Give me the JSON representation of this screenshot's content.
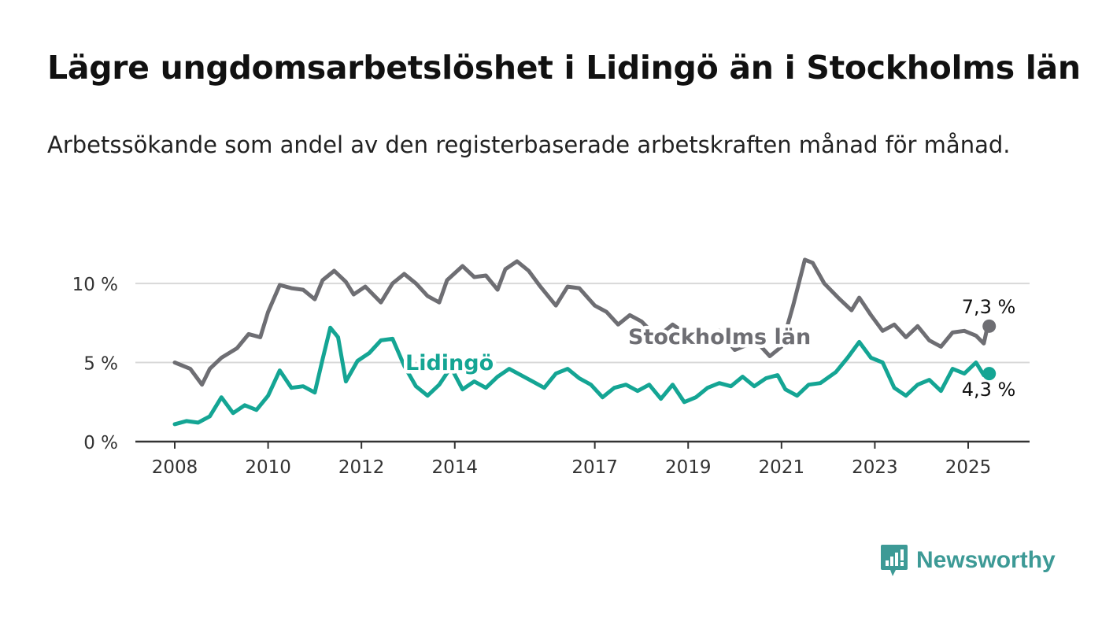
{
  "header": {
    "title": "Lägre ungdomsarbetslöshet i Lidingö än i Stockholms län",
    "subtitle": "Arbetssökande som andel av den registerbaserade arbetskraften månad för månad."
  },
  "brand": {
    "name": "Newsworthy",
    "icon": "newsworthy-bar-chart-logo-icon"
  },
  "colors": {
    "stockholm": "#6e6e73",
    "lidingo": "#14a594",
    "grid": "#d8d8d8",
    "axis": "#333333",
    "brand": "#3d9a96"
  },
  "chart_data": {
    "type": "line",
    "x_start": "2008-01",
    "x_end": "2025-06",
    "x_ticks": [
      "2008",
      "2010",
      "2012",
      "2014",
      "2017",
      "2019",
      "2021",
      "2023",
      "2025"
    ],
    "y_ticks": [
      0,
      5,
      10
    ],
    "y_tick_labels": [
      "0 %",
      "5 %",
      "10 %"
    ],
    "ylim": [
      0,
      12
    ],
    "grid": true,
    "series": [
      {
        "name": "Stockholms län",
        "key": "stockholm",
        "end_label": "7,3 %",
        "points": [
          [
            "2008-01",
            5.0
          ],
          [
            "2008-05",
            4.6
          ],
          [
            "2008-08",
            3.6
          ],
          [
            "2008-10",
            4.6
          ],
          [
            "2009-01",
            5.3
          ],
          [
            "2009-05",
            5.9
          ],
          [
            "2009-08",
            6.8
          ],
          [
            "2009-11",
            6.6
          ],
          [
            "2010-01",
            8.2
          ],
          [
            "2010-04",
            9.9
          ],
          [
            "2010-07",
            9.7
          ],
          [
            "2010-10",
            9.6
          ],
          [
            "2011-01",
            9.0
          ],
          [
            "2011-03",
            10.2
          ],
          [
            "2011-06",
            10.8
          ],
          [
            "2011-09",
            10.1
          ],
          [
            "2011-11",
            9.3
          ],
          [
            "2012-02",
            9.8
          ],
          [
            "2012-06",
            8.8
          ],
          [
            "2012-09",
            10.0
          ],
          [
            "2012-12",
            10.6
          ],
          [
            "2013-03",
            10.0
          ],
          [
            "2013-06",
            9.2
          ],
          [
            "2013-09",
            8.8
          ],
          [
            "2013-11",
            10.2
          ],
          [
            "2014-03",
            11.1
          ],
          [
            "2014-06",
            10.4
          ],
          [
            "2014-09",
            10.5
          ],
          [
            "2014-12",
            9.6
          ],
          [
            "2015-02",
            10.9
          ],
          [
            "2015-05",
            11.4
          ],
          [
            "2015-08",
            10.8
          ],
          [
            "2015-11",
            9.8
          ],
          [
            "2016-03",
            8.6
          ],
          [
            "2016-06",
            9.8
          ],
          [
            "2016-09",
            9.7
          ],
          [
            "2017-01",
            8.6
          ],
          [
            "2017-04",
            8.2
          ],
          [
            "2017-07",
            7.4
          ],
          [
            "2017-10",
            8.0
          ],
          [
            "2018-01",
            7.6
          ],
          [
            "2018-05",
            6.6
          ],
          [
            "2018-09",
            7.4
          ],
          [
            "2018-12",
            6.9
          ],
          [
            "2019-03",
            6.4
          ],
          [
            "2019-06",
            6.1
          ],
          [
            "2019-09",
            7.0
          ],
          [
            "2019-11",
            6.4
          ],
          [
            "2020-01",
            5.8
          ],
          [
            "2020-04",
            6.1
          ],
          [
            "2020-07",
            6.2
          ],
          [
            "2020-10",
            5.4
          ],
          [
            "2021-01",
            6.0
          ],
          [
            "2021-04",
            8.6
          ],
          [
            "2021-07",
            11.5
          ],
          [
            "2021-09",
            11.3
          ],
          [
            "2021-12",
            10.0
          ],
          [
            "2022-04",
            9.0
          ],
          [
            "2022-07",
            8.3
          ],
          [
            "2022-09",
            9.1
          ],
          [
            "2022-12",
            8.0
          ],
          [
            "2023-03",
            7.0
          ],
          [
            "2023-06",
            7.4
          ],
          [
            "2023-09",
            6.6
          ],
          [
            "2023-12",
            7.3
          ],
          [
            "2024-03",
            6.4
          ],
          [
            "2024-06",
            6.0
          ],
          [
            "2024-09",
            6.9
          ],
          [
            "2024-12",
            7.0
          ],
          [
            "2025-03",
            6.7
          ],
          [
            "2025-05",
            6.2
          ],
          [
            "2025-06",
            7.3
          ]
        ]
      },
      {
        "name": "Lidingö",
        "key": "lidingo",
        "end_label": "4,3 %",
        "points": [
          [
            "2008-01",
            1.1
          ],
          [
            "2008-04",
            1.3
          ],
          [
            "2008-07",
            1.2
          ],
          [
            "2008-10",
            1.6
          ],
          [
            "2009-01",
            2.8
          ],
          [
            "2009-04",
            1.8
          ],
          [
            "2009-07",
            2.3
          ],
          [
            "2009-10",
            2.0
          ],
          [
            "2010-01",
            2.9
          ],
          [
            "2010-04",
            4.5
          ],
          [
            "2010-07",
            3.4
          ],
          [
            "2010-10",
            3.5
          ],
          [
            "2011-01",
            3.1
          ],
          [
            "2011-03",
            5.2
          ],
          [
            "2011-05",
            7.2
          ],
          [
            "2011-07",
            6.6
          ],
          [
            "2011-09",
            3.8
          ],
          [
            "2011-12",
            5.1
          ],
          [
            "2012-03",
            5.6
          ],
          [
            "2012-06",
            6.4
          ],
          [
            "2012-09",
            6.5
          ],
          [
            "2012-12",
            4.8
          ],
          [
            "2013-03",
            3.5
          ],
          [
            "2013-06",
            2.9
          ],
          [
            "2013-09",
            3.6
          ],
          [
            "2013-12",
            4.7
          ],
          [
            "2014-03",
            3.3
          ],
          [
            "2014-06",
            3.8
          ],
          [
            "2014-09",
            3.4
          ],
          [
            "2014-12",
            4.1
          ],
          [
            "2015-03",
            4.6
          ],
          [
            "2015-06",
            4.2
          ],
          [
            "2015-09",
            3.8
          ],
          [
            "2015-12",
            3.4
          ],
          [
            "2016-03",
            4.3
          ],
          [
            "2016-06",
            4.6
          ],
          [
            "2016-09",
            4.0
          ],
          [
            "2016-12",
            3.6
          ],
          [
            "2017-03",
            2.8
          ],
          [
            "2017-06",
            3.4
          ],
          [
            "2017-09",
            3.6
          ],
          [
            "2017-12",
            3.2
          ],
          [
            "2018-03",
            3.6
          ],
          [
            "2018-06",
            2.7
          ],
          [
            "2018-09",
            3.6
          ],
          [
            "2018-12",
            2.5
          ],
          [
            "2019-03",
            2.8
          ],
          [
            "2019-06",
            3.4
          ],
          [
            "2019-09",
            3.7
          ],
          [
            "2019-12",
            3.5
          ],
          [
            "2020-03",
            4.1
          ],
          [
            "2020-06",
            3.5
          ],
          [
            "2020-09",
            4.0
          ],
          [
            "2020-12",
            4.2
          ],
          [
            "2021-02",
            3.3
          ],
          [
            "2021-05",
            2.9
          ],
          [
            "2021-08",
            3.6
          ],
          [
            "2021-11",
            3.7
          ],
          [
            "2022-03",
            4.4
          ],
          [
            "2022-06",
            5.3
          ],
          [
            "2022-09",
            6.3
          ],
          [
            "2022-12",
            5.3
          ],
          [
            "2023-03",
            5.0
          ],
          [
            "2023-06",
            3.4
          ],
          [
            "2023-09",
            2.9
          ],
          [
            "2023-12",
            3.6
          ],
          [
            "2024-03",
            3.9
          ],
          [
            "2024-06",
            3.2
          ],
          [
            "2024-09",
            4.6
          ],
          [
            "2024-12",
            4.3
          ],
          [
            "2025-03",
            5.0
          ],
          [
            "2025-05",
            4.2
          ],
          [
            "2025-06",
            4.3
          ]
        ]
      }
    ]
  }
}
